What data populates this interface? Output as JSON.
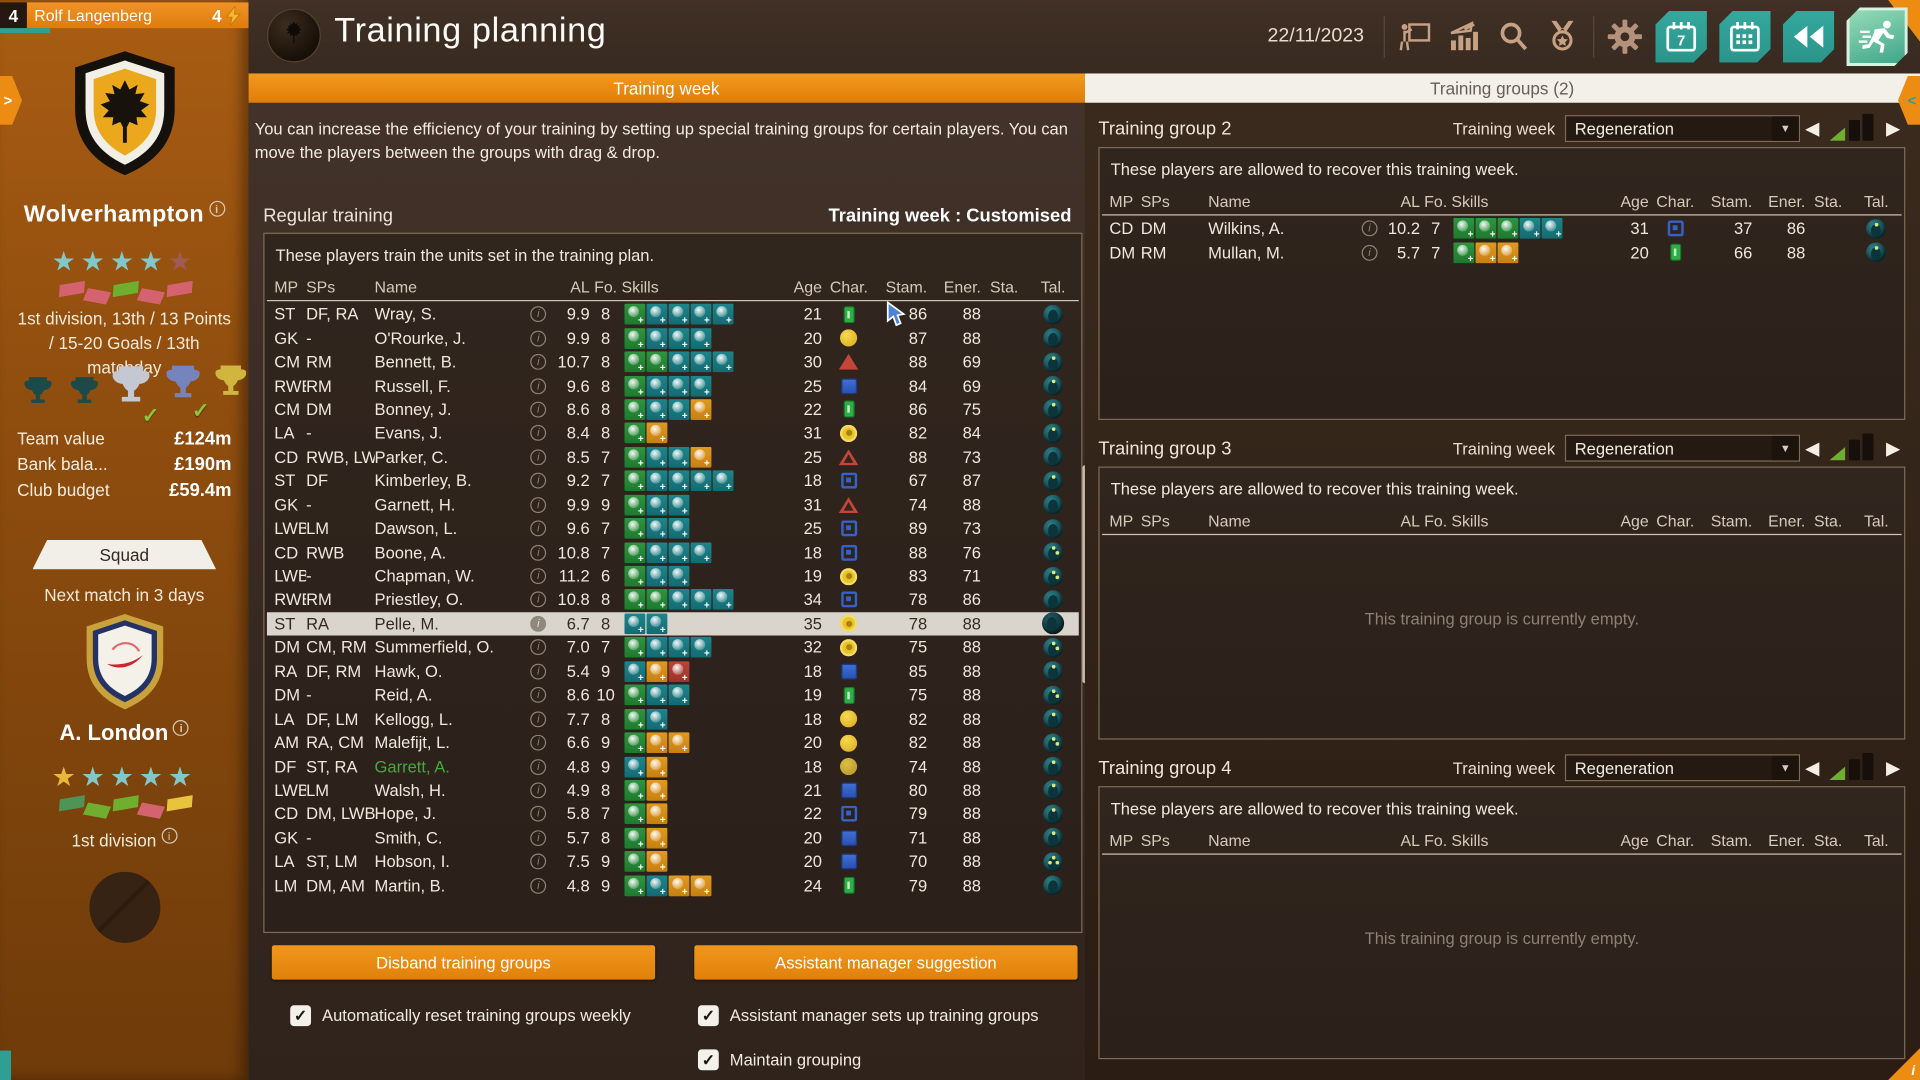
{
  "colors": {
    "accent_orange": "#e8850e",
    "teal_button": "#2f9f96",
    "selected_row": "#d9d5cc",
    "panel_border": "#7d6b57",
    "green_name": "#46a83c"
  },
  "manager_bar": {
    "level": "4",
    "name": "Rolf Langenberg",
    "energy": "4",
    "energy_icon": "lightning-icon"
  },
  "header": {
    "title": "Training planning",
    "date": "22/11/2023",
    "icons": [
      {
        "name": "coach-presentation-icon"
      },
      {
        "name": "stats-chart-icon"
      },
      {
        "name": "search-icon"
      },
      {
        "name": "medal-icon"
      },
      {
        "name": "gear-icon"
      }
    ],
    "buttons": [
      {
        "name": "calendar-week-button"
      },
      {
        "name": "calendar-month-button"
      },
      {
        "name": "rewind-button"
      },
      {
        "name": "training-button",
        "active": true
      }
    ]
  },
  "tabs": {
    "left": "Training week",
    "right": "Training groups (2)"
  },
  "edge": {
    "left_arrow": ">",
    "right_arrow": "<",
    "corner_info": "i"
  },
  "sidebar": {
    "club": {
      "name": "Wolverhampton",
      "stars": {
        "pattern": [
          "on",
          "on",
          "on",
          "on",
          "off"
        ]
      },
      "form": [
        "red",
        "red",
        "green",
        "red",
        "red"
      ],
      "division_text": "1st division, 13th / 13 Points / 15-20 Goals / 13th matchday",
      "trophies": [
        {
          "type": "cup-dark",
          "check": false
        },
        {
          "type": "cup-dark",
          "check": false
        },
        {
          "type": "trophy-silver",
          "check": true
        },
        {
          "type": "cup-blue",
          "check": true
        },
        {
          "type": "cup-gold",
          "check": false
        }
      ]
    },
    "finances": [
      {
        "label": "Team value",
        "value": "£124m"
      },
      {
        "label": "Bank bala...",
        "value": "£190m"
      },
      {
        "label": "Club budget",
        "value": "£59.4m"
      }
    ],
    "squad_button": "Squad",
    "next_match": "Next match in 3 days",
    "opponent": {
      "name": "A. London",
      "stars": {
        "pattern": [
          "gold",
          "on",
          "on",
          "on",
          "on"
        ]
      },
      "form": [
        "dgreen",
        "green",
        "green",
        "red",
        "yellow"
      ],
      "division_text": "1st division"
    }
  },
  "main": {
    "intro": "You can increase the efficiency of your training by setting up special training groups for certain players. You can move the players between the groups with drag & drop.",
    "section_title": "Regular training",
    "week_status": "Training week : Customised",
    "panel_note": "These players train the units set in the training plan.",
    "columns": [
      "MP",
      "SPs",
      "Name",
      "AL",
      "Fo.",
      "Skills",
      "Age",
      "Char.",
      "Stam.",
      "Ener.",
      "Sta.",
      "Tal."
    ],
    "players": [
      {
        "mp": "ST",
        "sps": "DF, RA",
        "name": "Wray, S.",
        "al": "9.9",
        "fo": "8",
        "skills": [
          "g",
          "t",
          "t",
          "t",
          "t"
        ],
        "age": "21",
        "char": "green-rect",
        "stam": "86",
        "ener": "88",
        "tal": "plain"
      },
      {
        "mp": "GK",
        "sps": "-",
        "name": "O'Rourke, J.",
        "al": "9.9",
        "fo": "8",
        "skills": [
          "g",
          "t",
          "t",
          "t"
        ],
        "age": "20",
        "char": "yellow-circle",
        "stam": "87",
        "ener": "88",
        "tal": "plain"
      },
      {
        "mp": "CM",
        "sps": "RM",
        "name": "Bennett, B.",
        "al": "10.7",
        "fo": "8",
        "skills": [
          "g",
          "g",
          "t",
          "t",
          "t"
        ],
        "age": "30",
        "char": "red-triangle",
        "stam": "88",
        "ener": "69",
        "tal": "star1"
      },
      {
        "mp": "RWB",
        "sps": "RM",
        "name": "Russell, F.",
        "al": "9.6",
        "fo": "8",
        "skills": [
          "g",
          "t",
          "t",
          "t"
        ],
        "age": "25",
        "char": "blue-square",
        "stam": "84",
        "ener": "69",
        "tal": "star1"
      },
      {
        "mp": "CM",
        "sps": "DM",
        "name": "Bonney, J.",
        "al": "8.6",
        "fo": "8",
        "skills": [
          "g",
          "t",
          "t",
          "o"
        ],
        "age": "22",
        "char": "green-rect",
        "stam": "86",
        "ener": "75",
        "tal": "star1"
      },
      {
        "mp": "LA",
        "sps": "-",
        "name": "Evans, J.",
        "al": "8.4",
        "fo": "8",
        "skills": [
          "g",
          "o"
        ],
        "age": "31",
        "char": "yellow-ring",
        "stam": "82",
        "ener": "84",
        "tal": "star1"
      },
      {
        "mp": "CD",
        "sps": "RWB, LWB",
        "name": "Parker, C.",
        "al": "8.5",
        "fo": "7",
        "skills": [
          "g",
          "t",
          "t",
          "o"
        ],
        "age": "25",
        "char": "red-triangle-outline",
        "stam": "88",
        "ener": "73",
        "tal": "plain"
      },
      {
        "mp": "ST",
        "sps": "DF",
        "name": "Kimberley, B.",
        "al": "9.2",
        "fo": "7",
        "skills": [
          "g",
          "t",
          "t",
          "t",
          "t"
        ],
        "age": "18",
        "char": "blue-square-outline",
        "stam": "67",
        "ener": "87",
        "tal": "star1"
      },
      {
        "mp": "GK",
        "sps": "-",
        "name": "Garnett, H.",
        "al": "9.9",
        "fo": "9",
        "skills": [
          "g",
          "t",
          "t"
        ],
        "age": "31",
        "char": "red-triangle-outline",
        "stam": "74",
        "ener": "88",
        "tal": "plain"
      },
      {
        "mp": "LWB",
        "sps": "LM",
        "name": "Dawson, L.",
        "al": "9.6",
        "fo": "7",
        "skills": [
          "g",
          "t",
          "t"
        ],
        "age": "25",
        "char": "blue-square-outline",
        "stam": "89",
        "ener": "73",
        "tal": "plain"
      },
      {
        "mp": "CD",
        "sps": "RWB",
        "name": "Boone, A.",
        "al": "10.8",
        "fo": "7",
        "skills": [
          "g",
          "t",
          "t",
          "t"
        ],
        "age": "18",
        "char": "blue-square-outline",
        "stam": "88",
        "ener": "76",
        "tal": "star2"
      },
      {
        "mp": "LWB",
        "sps": "-",
        "name": "Chapman, W.",
        "al": "11.2",
        "fo": "6",
        "skills": [
          "g",
          "t",
          "t"
        ],
        "age": "19",
        "char": "yellow-ring",
        "stam": "83",
        "ener": "71",
        "tal": "star2"
      },
      {
        "mp": "RWB",
        "sps": "RM",
        "name": "Priestley, O.",
        "al": "10.8",
        "fo": "8",
        "skills": [
          "g",
          "g",
          "t",
          "t",
          "t"
        ],
        "age": "34",
        "char": "blue-square-outline",
        "stam": "78",
        "ener": "86",
        "tal": "plain"
      },
      {
        "mp": "ST",
        "sps": "RA",
        "name": "Pelle, M.",
        "al": "6.7",
        "fo": "8",
        "skills": [
          "t",
          "t"
        ],
        "age": "35",
        "char": "yellow-ring",
        "stam": "78",
        "ener": "88",
        "tal": "plain",
        "selected": true
      },
      {
        "mp": "DM",
        "sps": "CM, RM",
        "name": "Summerfield, O.",
        "al": "7.0",
        "fo": "7",
        "skills": [
          "g",
          "t",
          "t",
          "t"
        ],
        "age": "32",
        "char": "yellow-ring",
        "stam": "75",
        "ener": "88",
        "tal": "star2"
      },
      {
        "mp": "RA",
        "sps": "DF, RM",
        "name": "Hawk, O.",
        "al": "5.4",
        "fo": "9",
        "skills": [
          "t",
          "o",
          "r"
        ],
        "age": "18",
        "char": "blue-square",
        "stam": "85",
        "ener": "88",
        "tal": "star1"
      },
      {
        "mp": "DM",
        "sps": "-",
        "name": "Reid, A.",
        "al": "8.6",
        "fo": "10",
        "skills": [
          "g",
          "t",
          "t"
        ],
        "age": "19",
        "char": "green-rect",
        "stam": "75",
        "ener": "88",
        "tal": "star2"
      },
      {
        "mp": "LA",
        "sps": "DF, LM",
        "name": "Kellogg, L.",
        "al": "7.7",
        "fo": "8",
        "skills": [
          "g",
          "t"
        ],
        "age": "18",
        "char": "yellow-circle",
        "stam": "82",
        "ener": "88",
        "tal": "star1"
      },
      {
        "mp": "AM",
        "sps": "RA, CM",
        "name": "Malefijt, L.",
        "al": "6.6",
        "fo": "9",
        "skills": [
          "g",
          "o",
          "o"
        ],
        "age": "20",
        "char": "yellow-circle",
        "stam": "82",
        "ener": "88",
        "tal": "star2"
      },
      {
        "mp": "DF",
        "sps": "ST, RA",
        "name": "Garrett, A.",
        "al": "4.8",
        "fo": "9",
        "skills": [
          "t",
          "o"
        ],
        "age": "18",
        "char": "yellow-olive",
        "stam": "74",
        "ener": "88",
        "tal": "star1",
        "green": true
      },
      {
        "mp": "LWB",
        "sps": "LM",
        "name": "Walsh, H.",
        "al": "4.9",
        "fo": "8",
        "skills": [
          "g",
          "o"
        ],
        "age": "21",
        "char": "blue-square",
        "stam": "80",
        "ener": "88",
        "tal": "star1"
      },
      {
        "mp": "CD",
        "sps": "DM, LWB",
        "name": "Hope, J.",
        "al": "5.8",
        "fo": "7",
        "skills": [
          "g",
          "o"
        ],
        "age": "22",
        "char": "blue-square-outline",
        "stam": "79",
        "ener": "88",
        "tal": "star1"
      },
      {
        "mp": "GK",
        "sps": "-",
        "name": "Smith, C.",
        "al": "5.7",
        "fo": "8",
        "skills": [
          "g",
          "o"
        ],
        "age": "20",
        "char": "blue-square",
        "stam": "71",
        "ener": "88",
        "tal": "star1"
      },
      {
        "mp": "LA",
        "sps": "ST, LM",
        "name": "Hobson, I.",
        "al": "7.5",
        "fo": "9",
        "skills": [
          "g",
          "o"
        ],
        "age": "20",
        "char": "blue-square",
        "stam": "70",
        "ener": "88",
        "tal": "star3"
      },
      {
        "mp": "LM",
        "sps": "DM, AM",
        "name": "Martin, B.",
        "al": "4.8",
        "fo": "9",
        "skills": [
          "g",
          "t",
          "o",
          "o"
        ],
        "age": "24",
        "char": "green-rect",
        "stam": "79",
        "ener": "88",
        "tal": "plain"
      }
    ],
    "buttons": {
      "disband": "Disband training groups",
      "assistant": "Assistant manager suggestion"
    },
    "checkboxes": [
      {
        "label": "Automatically reset training groups weekly",
        "checked": true
      },
      {
        "label": "Assistant manager sets up training groups",
        "checked": true
      },
      {
        "label": "Maintain grouping",
        "checked": true
      }
    ],
    "check_glyph": "✓"
  },
  "groups": [
    {
      "title": "Training group 2",
      "week_label": "Training week",
      "week_value": "Regeneration",
      "note": "These players are allowed to recover this training week.",
      "players": [
        {
          "mp": "CD",
          "sps": "DM",
          "name": "Wilkins, A.",
          "al": "10.2",
          "fo": "7",
          "skills": [
            "g",
            "g",
            "g",
            "t",
            "t"
          ],
          "age": "31",
          "char": "blue-square-outline",
          "stam": "37",
          "ener": "86",
          "tal": "star1"
        },
        {
          "mp": "DM",
          "sps": "RM",
          "name": "Mullan, M.",
          "al": "5.7",
          "fo": "7",
          "skills": [
            "g",
            "o",
            "o"
          ],
          "age": "20",
          "char": "green-rect",
          "stam": "66",
          "ener": "88",
          "tal": "star1"
        }
      ]
    },
    {
      "title": "Training group 3",
      "week_label": "Training week",
      "week_value": "Regeneration",
      "note": "These players are allowed to recover this training week.",
      "players": [],
      "empty_text": "This training group is currently empty."
    },
    {
      "title": "Training group 4",
      "week_label": "Training week",
      "week_value": "Regeneration",
      "note": "These players are allowed to recover this training week.",
      "players": [],
      "empty_text": "This training group is currently empty."
    }
  ]
}
